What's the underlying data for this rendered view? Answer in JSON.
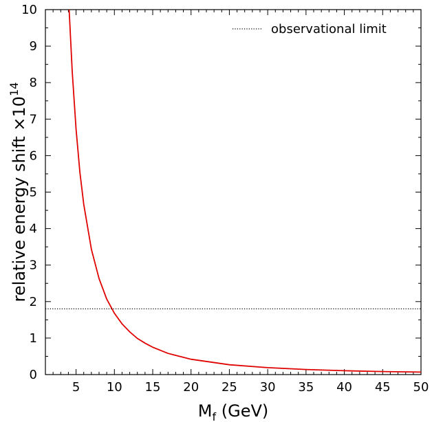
{
  "chart_data": {
    "type": "line",
    "xlabel": "M",
    "xlabel_sub": "f",
    "xlabel_unit": " (GeV)",
    "ylabel": "relative energy shift ×10",
    "ylabel_sup": "14",
    "xlim": [
      1,
      50
    ],
    "ylim": [
      0,
      10
    ],
    "xticks": [
      5,
      10,
      15,
      20,
      25,
      30,
      35,
      40,
      45,
      50
    ],
    "yticks": [
      0,
      1,
      2,
      3,
      4,
      5,
      6,
      7,
      8,
      9,
      10
    ],
    "grid": false,
    "legend_position": "top-right",
    "series": [
      {
        "color": "#e00000",
        "style": "solid",
        "x": [
          4.1,
          4.5,
          5,
          5.5,
          6,
          7,
          8,
          9,
          10,
          11,
          12,
          13,
          14,
          15,
          17,
          20,
          25,
          30,
          35,
          40,
          45,
          50
        ],
        "y": [
          10,
          8.3,
          6.72,
          5.55,
          4.67,
          3.43,
          2.63,
          2.07,
          1.68,
          1.39,
          1.17,
          0.99,
          0.86,
          0.75,
          0.58,
          0.42,
          0.27,
          0.19,
          0.14,
          0.105,
          0.083,
          0.067
        ]
      },
      {
        "name": "observational limit",
        "color": "#000000",
        "style": "dotted",
        "x": [
          1,
          50
        ],
        "y": [
          1.8,
          1.8
        ]
      }
    ]
  }
}
